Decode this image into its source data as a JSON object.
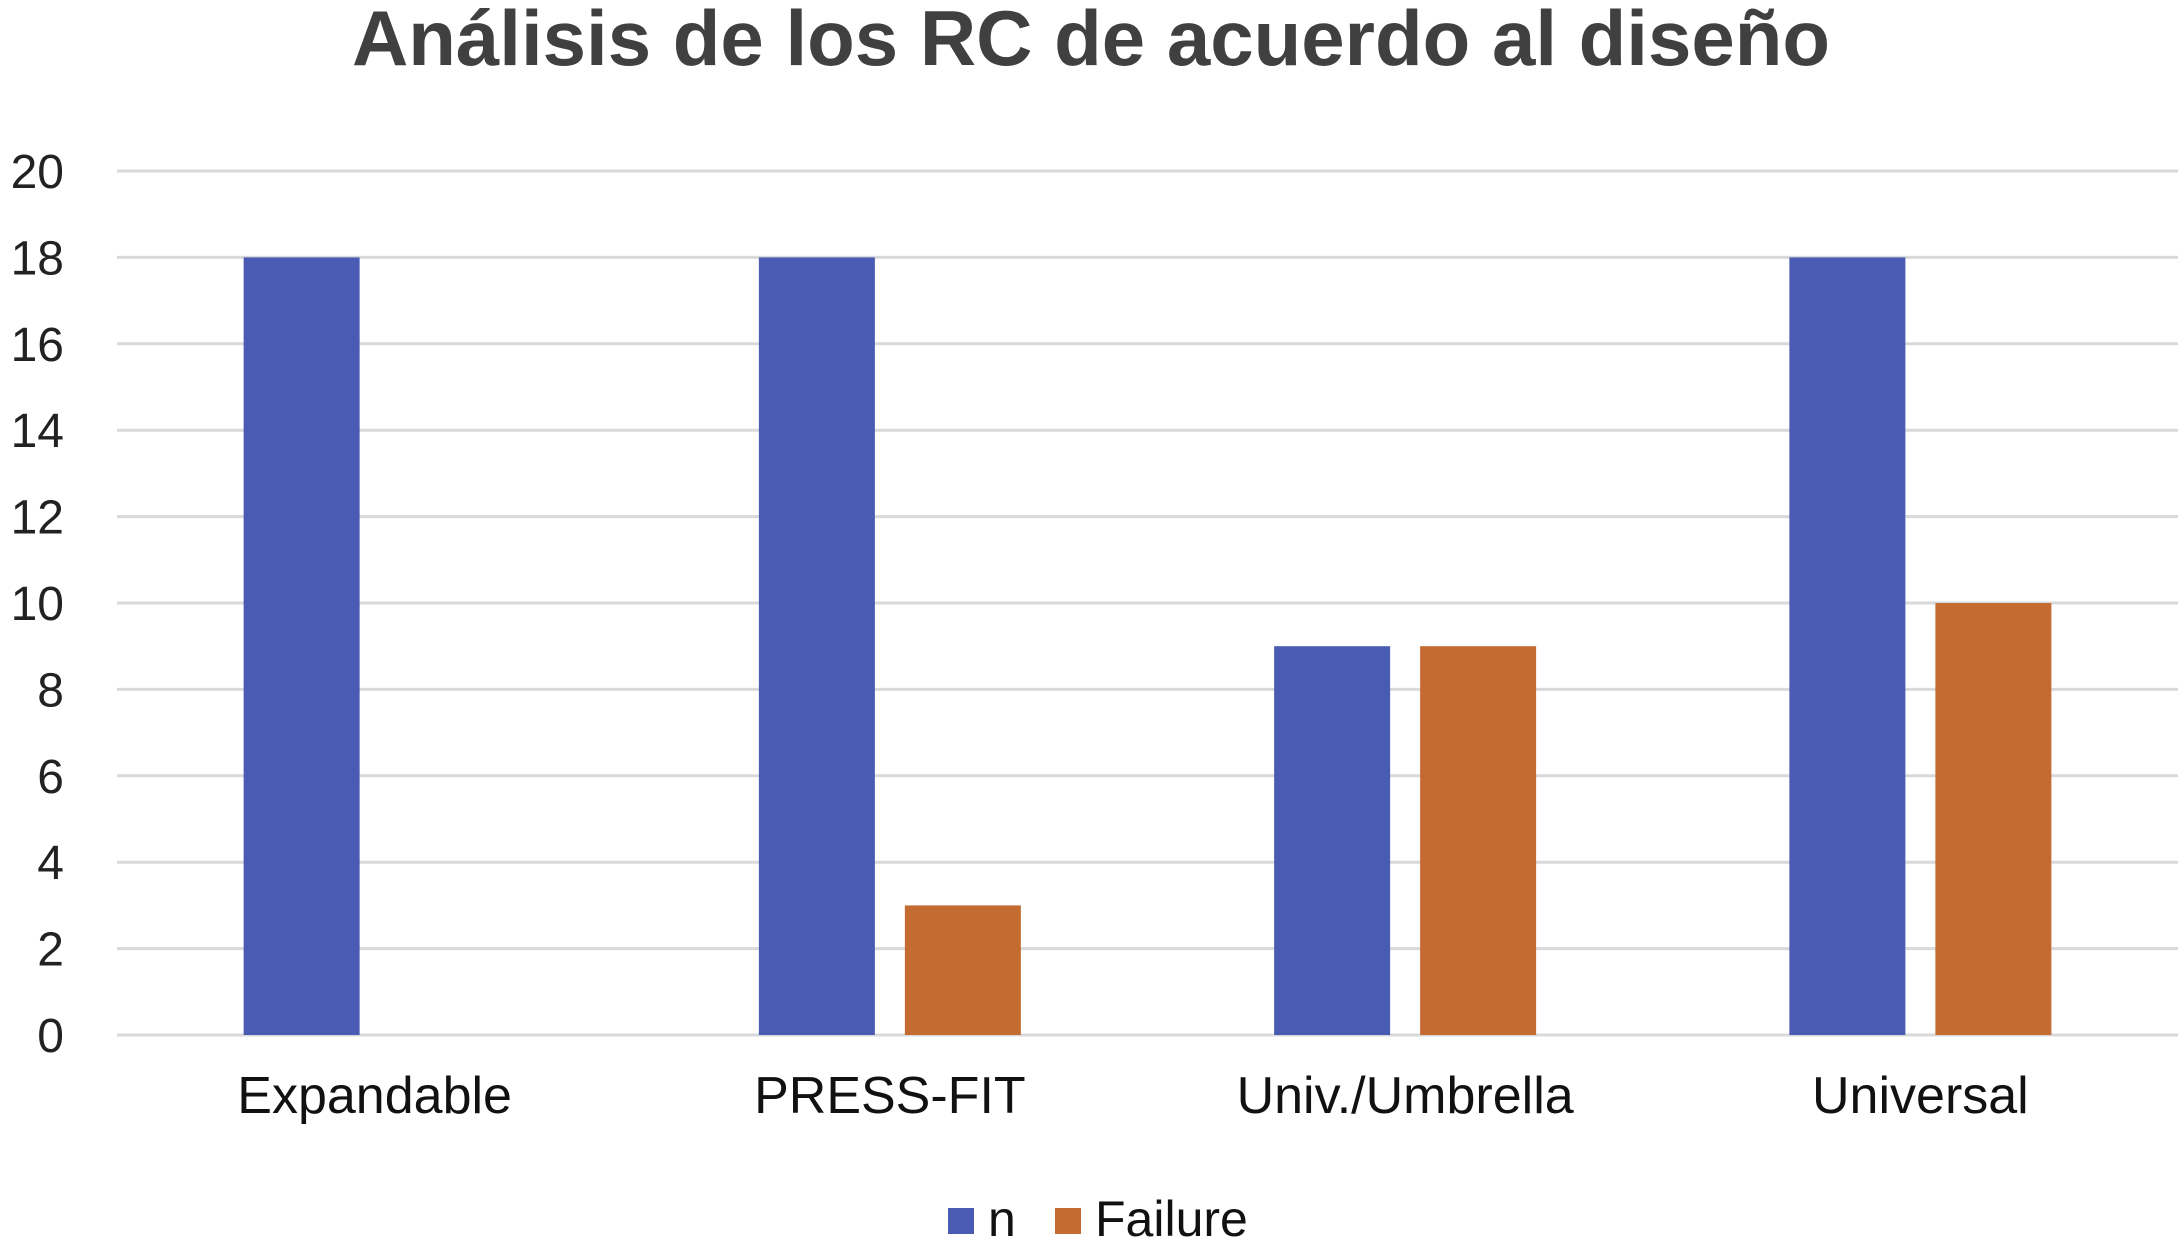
{
  "chart_data": {
    "type": "bar",
    "title": "Análisis de los RC de acuerdo al diseño",
    "xlabel": "",
    "ylabel": "",
    "categories": [
      "Expandable",
      "PRESS-FIT",
      "Univ./Umbrella",
      "Universal"
    ],
    "category_colors": [
      "#000000",
      "#404040",
      "#000000",
      "#000000"
    ],
    "series": [
      {
        "name": "n",
        "color": "#4A5BB3",
        "values": [
          18,
          18,
          9,
          18
        ]
      },
      {
        "name": "Failure",
        "color": "#C46B31",
        "values": [
          0,
          3,
          9,
          10
        ]
      }
    ],
    "ylim": [
      0,
      20
    ],
    "yticks": [
      "0",
      "2",
      "4",
      "6",
      "8",
      "10",
      "12",
      "14",
      "16",
      "18",
      "20"
    ],
    "grid": true,
    "grid_color": "#D9D9D9",
    "legend_position": "bottom-center"
  }
}
